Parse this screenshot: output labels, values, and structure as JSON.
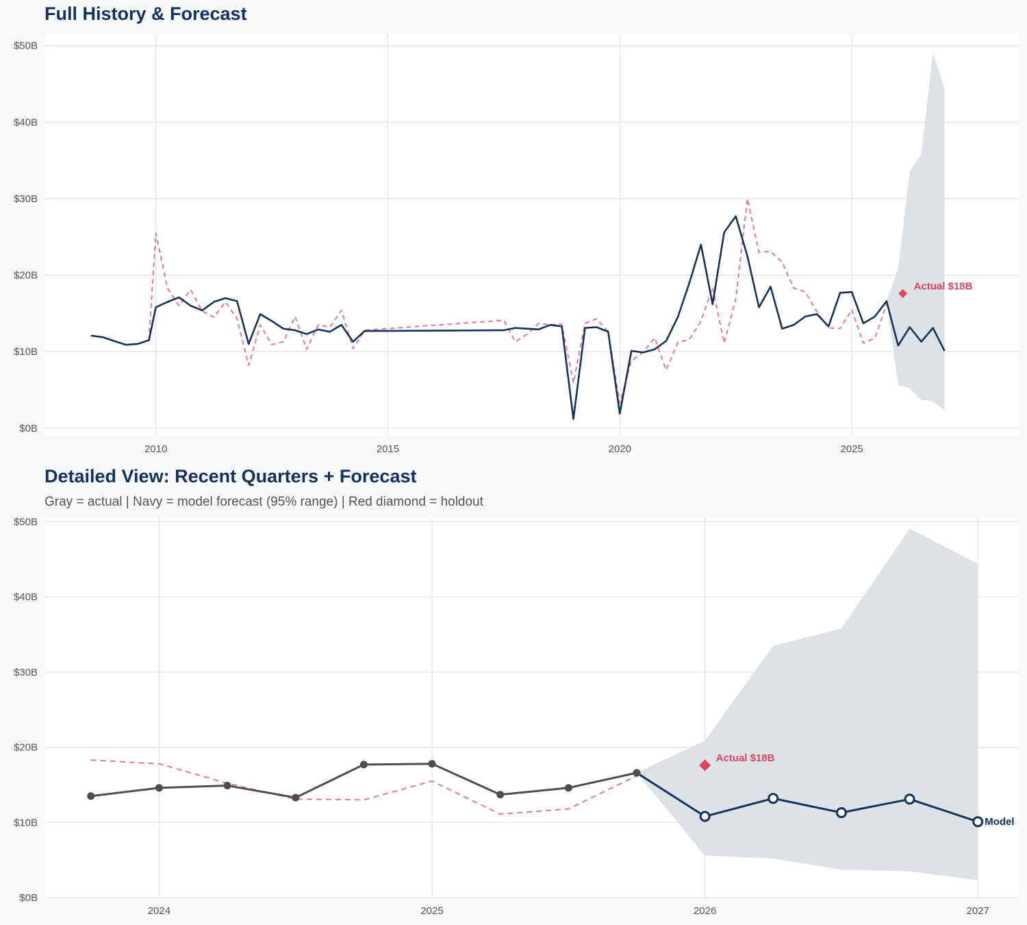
{
  "colors": {
    "navy": "#13315c",
    "actual_gray": "#4d4d4d",
    "dashed_red": "#e8788e",
    "holdout_red": "#e0425f",
    "band": "#dbe0e6",
    "grid": "#e3e3e3",
    "panel_bg": "#ffffff"
  },
  "chart_data": [
    {
      "type": "line",
      "title": "Full History & Forecast",
      "xlabel": "",
      "ylabel": "",
      "xlim": [
        2007.6,
        2028.6
      ],
      "ylim": [
        -1,
        51.5
      ],
      "x_ticks": [
        2010,
        2015,
        2020,
        2025
      ],
      "x_tick_labels": [
        "2010",
        "2015",
        "2020",
        "2025"
      ],
      "y_ticks": [
        0,
        10,
        20,
        30,
        40,
        50
      ],
      "y_tick_labels": [
        "$0B",
        "$10B",
        "$20B",
        "$30B",
        "$40B",
        "$50B"
      ],
      "grid": true,
      "legend": "none",
      "series": [
        {
          "style": "solid-navy",
          "points": [
            [
              2008.6,
              12.1
            ],
            [
              2008.85,
              11.9
            ],
            [
              2009.1,
              11.4
            ],
            [
              2009.35,
              10.9
            ],
            [
              2009.6,
              11.0
            ],
            [
              2009.85,
              11.5
            ],
            [
              2010.0,
              15.8
            ],
            [
              2010.25,
              16.5
            ],
            [
              2010.5,
              17.1
            ],
            [
              2010.75,
              16.0
            ],
            [
              2011.0,
              15.4
            ],
            [
              2011.25,
              16.5
            ],
            [
              2011.5,
              17.0
            ],
            [
              2011.75,
              16.6
            ],
            [
              2012.0,
              11.0
            ],
            [
              2012.25,
              14.9
            ],
            [
              2012.5,
              14.0
            ],
            [
              2012.75,
              13.0
            ],
            [
              2013.0,
              12.8
            ],
            [
              2013.25,
              12.3
            ],
            [
              2013.5,
              12.9
            ],
            [
              2013.75,
              12.6
            ],
            [
              2014.0,
              13.5
            ],
            [
              2014.25,
              11.3
            ],
            [
              2014.5,
              12.7
            ],
            [
              2017.5,
              12.8
            ],
            [
              2017.75,
              13.1
            ],
            [
              2018.0,
              13.0
            ],
            [
              2018.25,
              12.9
            ],
            [
              2018.5,
              13.5
            ],
            [
              2018.75,
              13.3
            ],
            [
              2019.0,
              1.2
            ],
            [
              2019.25,
              13.1
            ],
            [
              2019.5,
              13.2
            ],
            [
              2019.75,
              12.6
            ],
            [
              2020.0,
              1.9
            ],
            [
              2020.25,
              10.1
            ],
            [
              2020.5,
              9.9
            ],
            [
              2020.75,
              10.3
            ],
            [
              2021.0,
              11.4
            ],
            [
              2021.25,
              14.5
            ],
            [
              2021.5,
              19.0
            ],
            [
              2021.75,
              24.0
            ],
            [
              2022.0,
              16.2
            ],
            [
              2022.25,
              25.6
            ],
            [
              2022.5,
              27.7
            ],
            [
              2022.75,
              22.5
            ],
            [
              2023.0,
              15.8
            ],
            [
              2023.25,
              18.5
            ],
            [
              2023.5,
              13.0
            ],
            [
              2023.75,
              13.5
            ],
            [
              2024.0,
              14.6
            ],
            [
              2024.25,
              14.9
            ],
            [
              2024.5,
              13.3
            ],
            [
              2024.75,
              17.7
            ],
            [
              2025.0,
              17.8
            ],
            [
              2025.25,
              13.7
            ],
            [
              2025.5,
              14.6
            ],
            [
              2025.75,
              16.6
            ],
            [
              2026.0,
              10.8
            ],
            [
              2026.25,
              13.2
            ],
            [
              2026.5,
              11.3
            ],
            [
              2026.75,
              13.1
            ],
            [
              2027.0,
              10.1
            ]
          ]
        },
        {
          "style": "dashed-red",
          "points": [
            [
              2009.85,
              11.4
            ],
            [
              2010.0,
              25.5
            ],
            [
              2010.25,
              18.3
            ],
            [
              2010.5,
              16.0
            ],
            [
              2010.75,
              18.1
            ],
            [
              2011.0,
              15.3
            ],
            [
              2011.25,
              14.5
            ],
            [
              2011.5,
              16.5
            ],
            [
              2011.75,
              14.3
            ],
            [
              2012.0,
              8.2
            ],
            [
              2012.25,
              13.5
            ],
            [
              2012.5,
              10.9
            ],
            [
              2012.75,
              11.3
            ],
            [
              2013.0,
              14.6
            ],
            [
              2013.25,
              10.3
            ],
            [
              2013.5,
              13.5
            ],
            [
              2013.75,
              13.2
            ],
            [
              2014.0,
              15.4
            ],
            [
              2014.25,
              10.4
            ],
            [
              2014.5,
              12.8
            ],
            [
              2017.5,
              14.1
            ],
            [
              2017.75,
              11.3
            ],
            [
              2018.0,
              12.3
            ],
            [
              2018.25,
              13.7
            ],
            [
              2018.5,
              13.5
            ],
            [
              2018.75,
              13.6
            ],
            [
              2019.0,
              5.9
            ],
            [
              2019.25,
              13.7
            ],
            [
              2019.5,
              14.3
            ],
            [
              2019.75,
              12.6
            ],
            [
              2020.0,
              3.3
            ],
            [
              2020.25,
              8.8
            ],
            [
              2020.5,
              9.9
            ],
            [
              2020.75,
              11.8
            ],
            [
              2021.0,
              7.6
            ],
            [
              2021.25,
              11.2
            ],
            [
              2021.5,
              11.6
            ],
            [
              2021.75,
              14.0
            ],
            [
              2022.0,
              18.4
            ],
            [
              2022.25,
              11.1
            ],
            [
              2022.5,
              16.9
            ],
            [
              2022.75,
              30.0
            ],
            [
              2023.0,
              23.0
            ],
            [
              2023.25,
              23.1
            ],
            [
              2023.5,
              21.7
            ],
            [
              2023.75,
              18.3
            ],
            [
              2024.0,
              17.8
            ],
            [
              2024.25,
              15.2
            ],
            [
              2024.5,
              13.1
            ],
            [
              2024.75,
              13.0
            ],
            [
              2025.0,
              15.5
            ],
            [
              2025.25,
              11.1
            ],
            [
              2025.5,
              11.8
            ],
            [
              2025.75,
              16.2
            ]
          ]
        }
      ],
      "band": {
        "x": [
          2025.75,
          2026.0,
          2026.25,
          2026.5,
          2026.75,
          2027.0
        ],
        "lower": [
          16.6,
          5.6,
          5.2,
          3.7,
          3.5,
          2.3
        ],
        "upper": [
          16.6,
          20.9,
          33.5,
          35.8,
          49.1,
          44.4
        ]
      },
      "holdout": {
        "x": 2026.0,
        "y": 17.6,
        "label": "Actual $18B"
      }
    },
    {
      "type": "line",
      "title": "Detailed View: Recent Quarters + Forecast",
      "subtitle": "Gray = actual  |  Navy = model forecast (95% range)  |  Red diamond = holdout",
      "xlabel": "",
      "ylabel": "",
      "xlim": [
        2023.58,
        2027.15
      ],
      "ylim": [
        0,
        50.5
      ],
      "x_ticks": [
        2024,
        2025,
        2026,
        2027
      ],
      "x_tick_labels": [
        "2024",
        "2025",
        "2026",
        "2027"
      ],
      "y_ticks": [
        0,
        10,
        20,
        30,
        40,
        50
      ],
      "y_tick_labels": [
        "$0B",
        "$10B",
        "$20B",
        "$30B",
        "$40B",
        "$50B"
      ],
      "grid": true,
      "legend": "none",
      "actual": {
        "x": [
          2023.75,
          2024.0,
          2024.25,
          2024.5,
          2024.75,
          2025.0,
          2025.25,
          2025.5,
          2025.75
        ],
        "y": [
          13.5,
          14.6,
          14.9,
          13.3,
          17.7,
          17.8,
          13.7,
          14.6,
          16.6
        ]
      },
      "dashed": {
        "x": [
          2023.75,
          2024.0,
          2024.25,
          2024.5,
          2024.75,
          2025.0,
          2025.25,
          2025.5,
          2025.75
        ],
        "y": [
          18.3,
          17.8,
          15.2,
          13.1,
          13.0,
          15.5,
          11.1,
          11.8,
          16.2
        ]
      },
      "forecast": {
        "name": "Model",
        "x": [
          2025.75,
          2026.0,
          2026.25,
          2026.5,
          2026.75,
          2027.0
        ],
        "y": [
          16.6,
          10.8,
          13.2,
          11.3,
          13.1,
          10.1
        ]
      },
      "band": {
        "x": [
          2025.75,
          2026.0,
          2026.25,
          2026.5,
          2026.75,
          2027.0
        ],
        "lower": [
          16.6,
          5.6,
          5.2,
          3.7,
          3.5,
          2.3
        ],
        "upper": [
          16.6,
          20.9,
          33.5,
          35.8,
          49.1,
          44.4
        ]
      },
      "holdout": {
        "x": 2026.0,
        "y": 17.6,
        "label": "Actual $18B"
      }
    }
  ]
}
